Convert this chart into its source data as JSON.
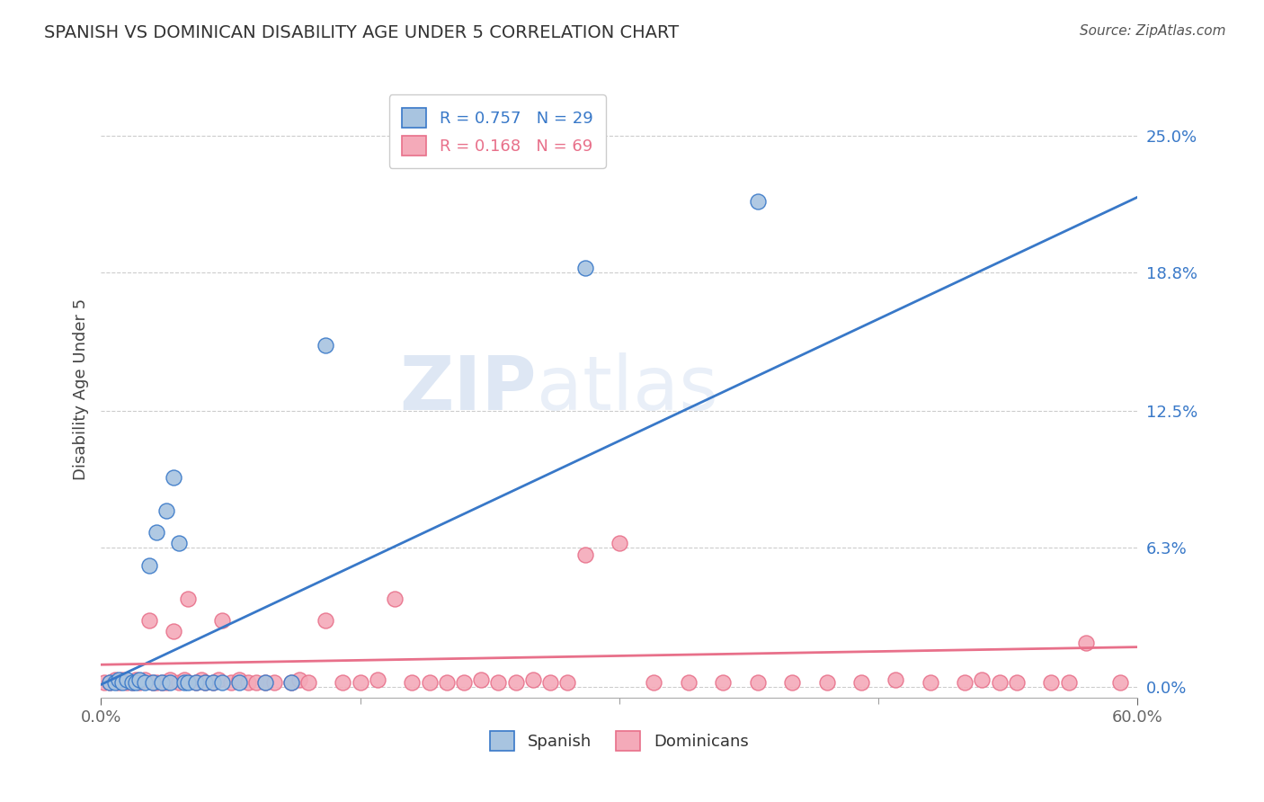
{
  "title": "SPANISH VS DOMINICAN DISABILITY AGE UNDER 5 CORRELATION CHART",
  "source": "Source: ZipAtlas.com",
  "ylabel": "Disability Age Under 5",
  "xlabel": "",
  "xlim": [
    0.0,
    0.6
  ],
  "ylim": [
    -0.005,
    0.275
  ],
  "yticks": [
    0.0,
    0.063,
    0.125,
    0.188,
    0.25
  ],
  "ytick_labels": [
    "0.0%",
    "6.3%",
    "12.5%",
    "18.8%",
    "25.0%"
  ],
  "legend_R_spanish": "R = 0.757",
  "legend_N_spanish": "N = 29",
  "legend_R_dominican": "R = 0.168",
  "legend_N_dominican": "N = 69",
  "spanish_color": "#a8c4e0",
  "dominican_color": "#f4aab9",
  "spanish_line_color": "#3878c8",
  "dominican_line_color": "#e8708a",
  "watermark_zip": "ZIP",
  "watermark_atlas": "atlas",
  "background_color": "#ffffff",
  "grid_color": "#cccccc",
  "spanish_x": [
    0.005,
    0.008,
    0.01,
    0.012,
    0.015,
    0.018,
    0.02,
    0.022,
    0.025,
    0.028,
    0.03,
    0.032,
    0.035,
    0.038,
    0.04,
    0.042,
    0.045,
    0.048,
    0.05,
    0.055,
    0.06,
    0.065,
    0.07,
    0.08,
    0.095,
    0.11,
    0.13,
    0.28,
    0.38
  ],
  "spanish_y": [
    0.002,
    0.002,
    0.003,
    0.002,
    0.003,
    0.002,
    0.002,
    0.003,
    0.002,
    0.055,
    0.002,
    0.07,
    0.002,
    0.08,
    0.002,
    0.095,
    0.065,
    0.002,
    0.002,
    0.002,
    0.002,
    0.002,
    0.002,
    0.002,
    0.002,
    0.002,
    0.155,
    0.19,
    0.22
  ],
  "dominican_x": [
    0.002,
    0.005,
    0.008,
    0.01,
    0.012,
    0.015,
    0.018,
    0.02,
    0.022,
    0.025,
    0.028,
    0.03,
    0.032,
    0.035,
    0.038,
    0.04,
    0.042,
    0.045,
    0.048,
    0.05,
    0.055,
    0.058,
    0.06,
    0.065,
    0.068,
    0.07,
    0.075,
    0.08,
    0.085,
    0.09,
    0.095,
    0.1,
    0.11,
    0.115,
    0.12,
    0.13,
    0.14,
    0.15,
    0.16,
    0.17,
    0.18,
    0.19,
    0.2,
    0.21,
    0.22,
    0.23,
    0.24,
    0.25,
    0.26,
    0.27,
    0.28,
    0.3,
    0.32,
    0.34,
    0.36,
    0.38,
    0.4,
    0.42,
    0.44,
    0.46,
    0.48,
    0.5,
    0.51,
    0.52,
    0.53,
    0.55,
    0.56,
    0.57,
    0.59
  ],
  "dominican_y": [
    0.002,
    0.002,
    0.003,
    0.002,
    0.003,
    0.002,
    0.002,
    0.003,
    0.002,
    0.003,
    0.03,
    0.002,
    0.002,
    0.002,
    0.002,
    0.003,
    0.025,
    0.002,
    0.003,
    0.04,
    0.002,
    0.003,
    0.002,
    0.002,
    0.003,
    0.03,
    0.002,
    0.003,
    0.002,
    0.002,
    0.002,
    0.002,
    0.002,
    0.003,
    0.002,
    0.03,
    0.002,
    0.002,
    0.003,
    0.04,
    0.002,
    0.002,
    0.002,
    0.002,
    0.003,
    0.002,
    0.002,
    0.003,
    0.002,
    0.002,
    0.06,
    0.065,
    0.002,
    0.002,
    0.002,
    0.002,
    0.002,
    0.002,
    0.002,
    0.003,
    0.002,
    0.002,
    0.003,
    0.002,
    0.002,
    0.002,
    0.002,
    0.02,
    0.002
  ],
  "spanish_line_x0": 0.0,
  "spanish_line_y0": 0.001,
  "spanish_line_x1": 0.6,
  "spanish_line_y1": 0.222,
  "dominican_line_x0": 0.0,
  "dominican_line_y0": 0.01,
  "dominican_line_x1": 0.6,
  "dominican_line_y1": 0.018
}
